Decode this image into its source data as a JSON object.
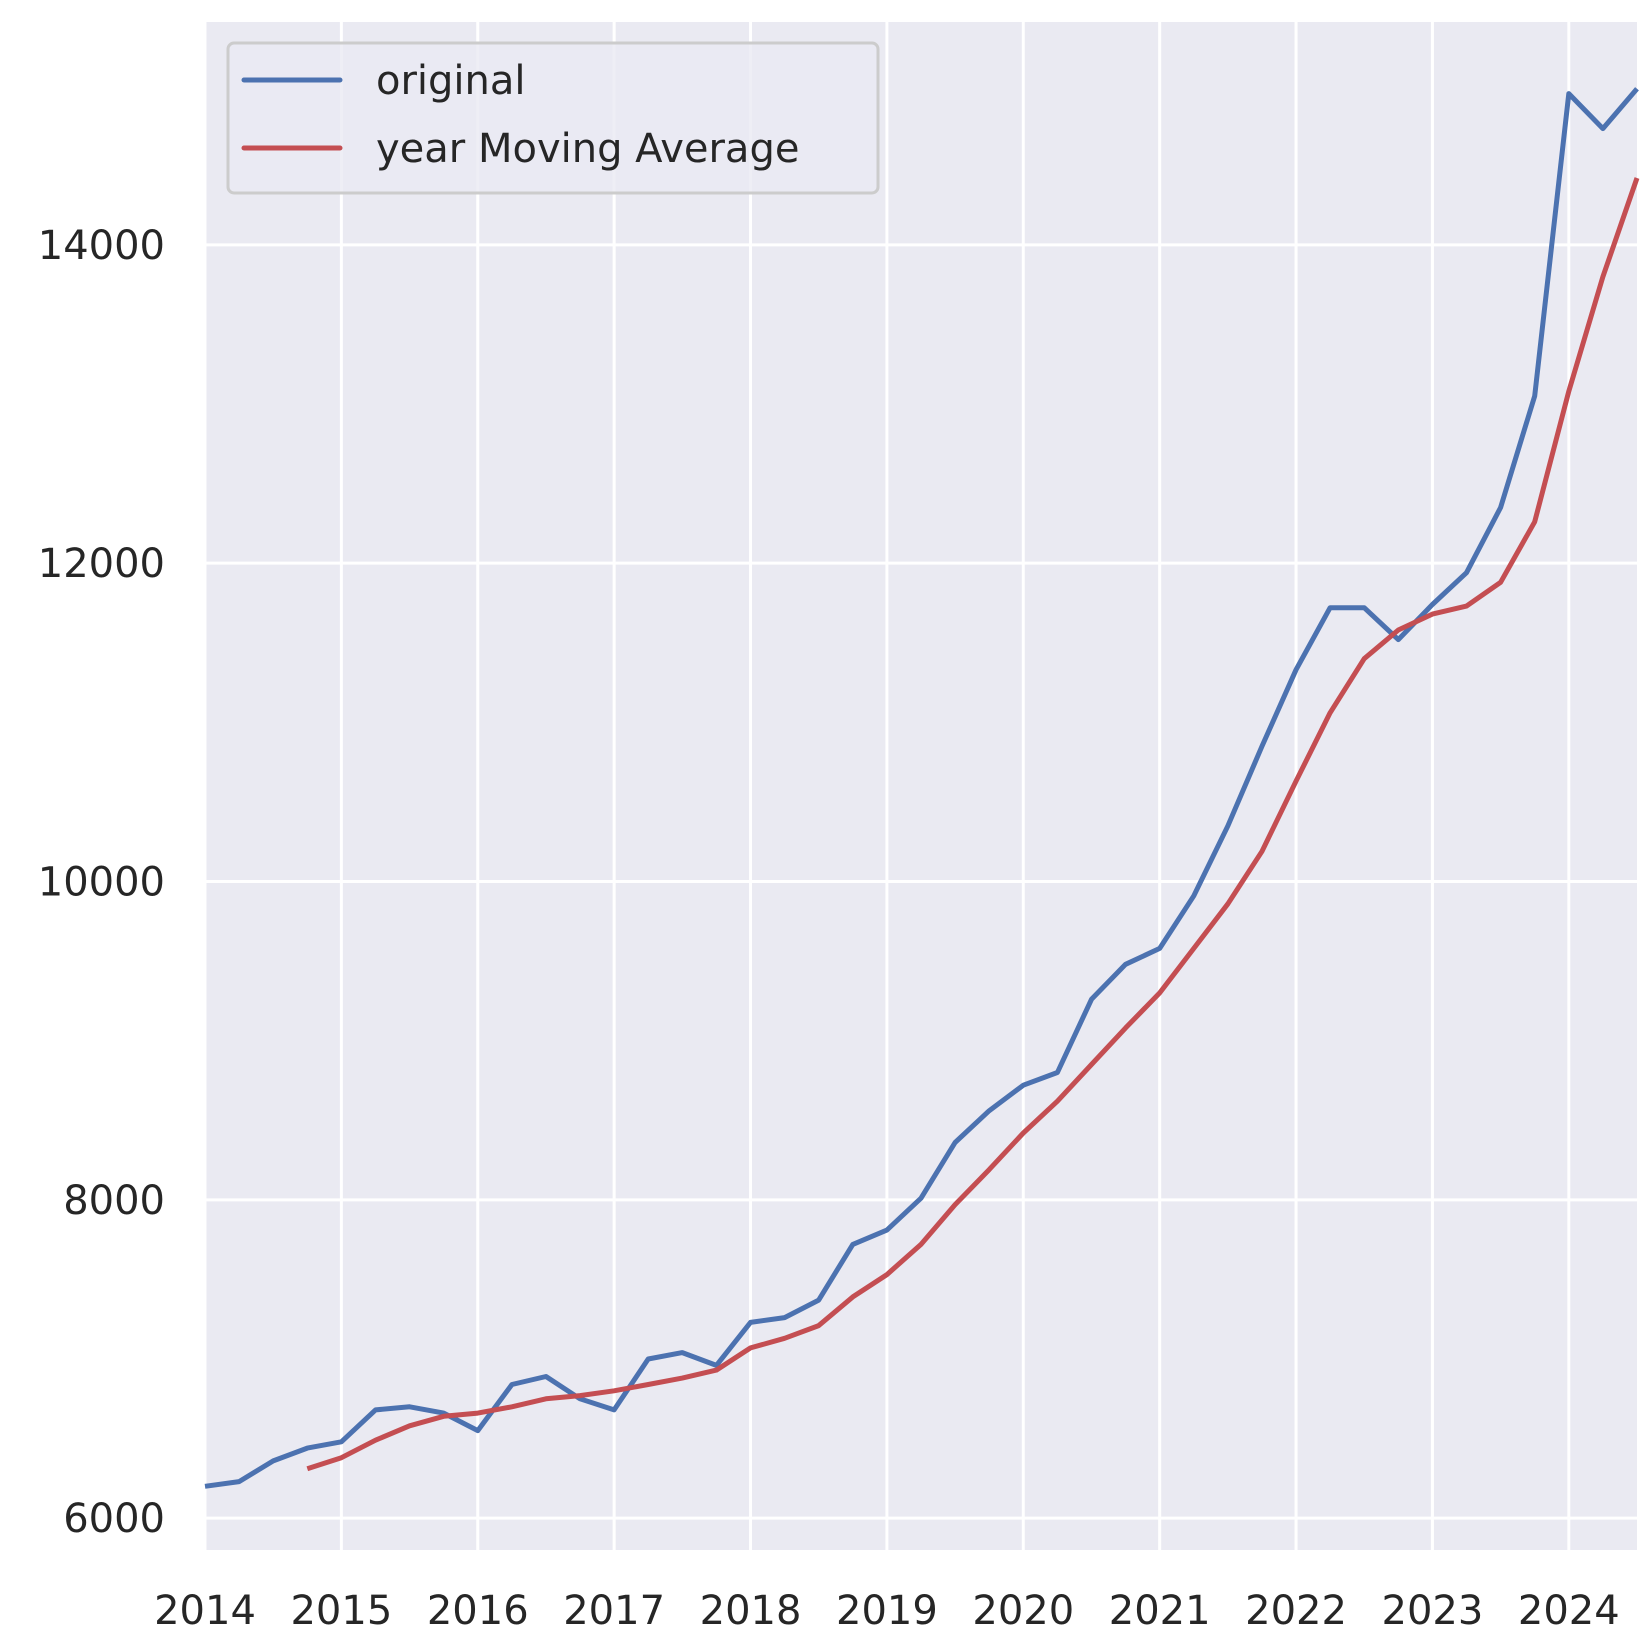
{
  "chart_data": {
    "type": "line",
    "title": "",
    "xlabel": "",
    "ylabel": "",
    "grid": true,
    "legend_position": "top-left",
    "xlim": [
      2014.0,
      2024.5
    ],
    "ylim": [
      5800,
      15400
    ],
    "x_ticks": [
      2014,
      2015,
      2016,
      2017,
      2018,
      2019,
      2020,
      2021,
      2022,
      2023,
      2024
    ],
    "x_tick_labels": [
      "2014",
      "2015",
      "2016",
      "2017",
      "2018",
      "2019",
      "2020",
      "2021",
      "2022",
      "2023",
      "2024"
    ],
    "y_ticks": [
      6000,
      8000,
      10000,
      12000,
      14000
    ],
    "y_tick_labels": [
      "6000",
      "8000",
      "10000",
      "12000",
      "14000"
    ],
    "series": [
      {
        "name": "original",
        "color": "#4c72b0",
        "x": [
          2014.0,
          2014.25,
          2014.5,
          2014.75,
          2015.0,
          2015.25,
          2015.5,
          2015.75,
          2016.0,
          2016.25,
          2016.5,
          2016.75,
          2017.0,
          2017.25,
          2017.5,
          2017.75,
          2018.0,
          2018.25,
          2018.5,
          2018.75,
          2019.0,
          2019.25,
          2019.5,
          2019.75,
          2020.0,
          2020.25,
          2020.5,
          2020.75,
          2021.0,
          2021.25,
          2021.5,
          2021.75,
          2022.0,
          2022.25,
          2022.5,
          2022.75,
          2023.0,
          2023.25,
          2023.5,
          2023.75,
          2024.0,
          2024.25,
          2024.5
        ],
        "y": [
          6200,
          6230,
          6360,
          6440,
          6480,
          6680,
          6700,
          6660,
          6550,
          6840,
          6890,
          6750,
          6680,
          7000,
          7040,
          6960,
          7230,
          7260,
          7370,
          7720,
          7810,
          8010,
          8360,
          8560,
          8720,
          8800,
          9260,
          9480,
          9580,
          9910,
          10350,
          10850,
          11330,
          11720,
          11720,
          11520,
          11740,
          11940,
          12350,
          13050,
          14950,
          14730,
          14980
        ]
      },
      {
        "name": "year Moving Average",
        "color": "#c44e52",
        "x": [
          2014.75,
          2015.0,
          2015.25,
          2015.5,
          2015.75,
          2016.0,
          2016.25,
          2016.5,
          2016.75,
          2017.0,
          2017.25,
          2017.5,
          2017.75,
          2018.0,
          2018.25,
          2018.5,
          2018.75,
          2019.0,
          2019.25,
          2019.5,
          2019.75,
          2020.0,
          2020.25,
          2020.5,
          2020.75,
          2021.0,
          2021.25,
          2021.5,
          2021.75,
          2022.0,
          2022.25,
          2022.5,
          2022.75,
          2023.0,
          2023.25,
          2023.5,
          2023.75,
          2024.0,
          2024.25,
          2024.5
        ],
        "y": [
          6310,
          6380,
          6490,
          6580,
          6640,
          6660,
          6700,
          6750,
          6770,
          6800,
          6840,
          6880,
          6930,
          7070,
          7130,
          7210,
          7390,
          7530,
          7720,
          7970,
          8190,
          8420,
          8620,
          8850,
          9080,
          9300,
          9580,
          9860,
          10190,
          10630,
          11060,
          11400,
          11580,
          11680,
          11730,
          11880,
          12260,
          13080,
          13800,
          14420
        ]
      }
    ]
  }
}
